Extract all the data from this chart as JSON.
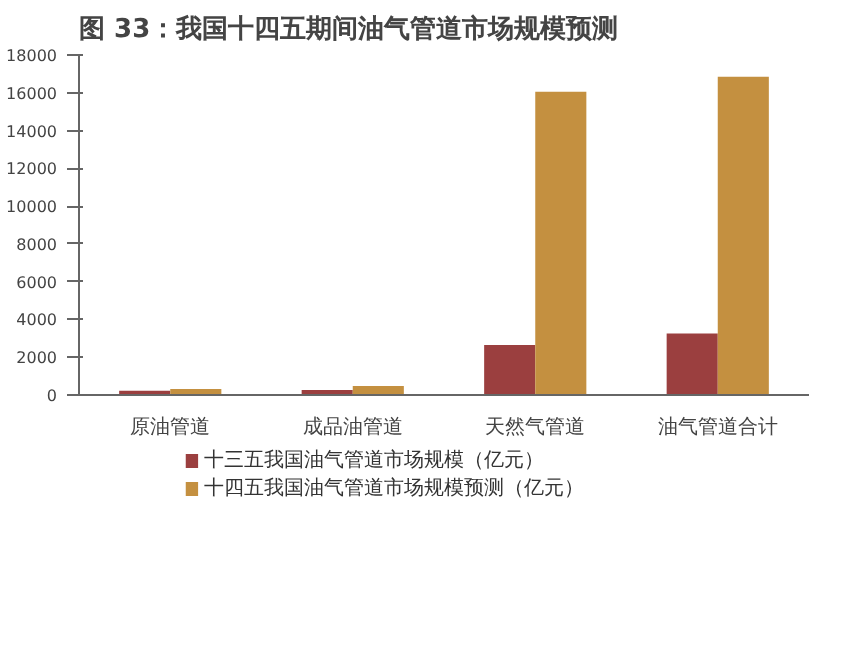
{
  "chart_data": {
    "type": "bar",
    "title": "图 33：我国十四五期间油气管道市场规模预测",
    "categories": [
      "原油管道",
      "成品油管道",
      "天然气管道",
      "油气管道合计"
    ],
    "series": [
      {
        "name": "十三五我国油气管道市场规模（亿元）",
        "color": "#9b3f3f",
        "values": [
          220,
          260,
          2650,
          3250
        ]
      },
      {
        "name": "十四五我国油气管道市场规模预测（亿元）",
        "color": "#c49040",
        "values": [
          320,
          480,
          16050,
          16850
        ]
      }
    ],
    "ylim": [
      0,
      18000
    ],
    "yticks": [
      0,
      2000,
      4000,
      6000,
      8000,
      10000,
      12000,
      14000,
      16000,
      18000
    ],
    "grid": false,
    "legend": "bottom"
  }
}
